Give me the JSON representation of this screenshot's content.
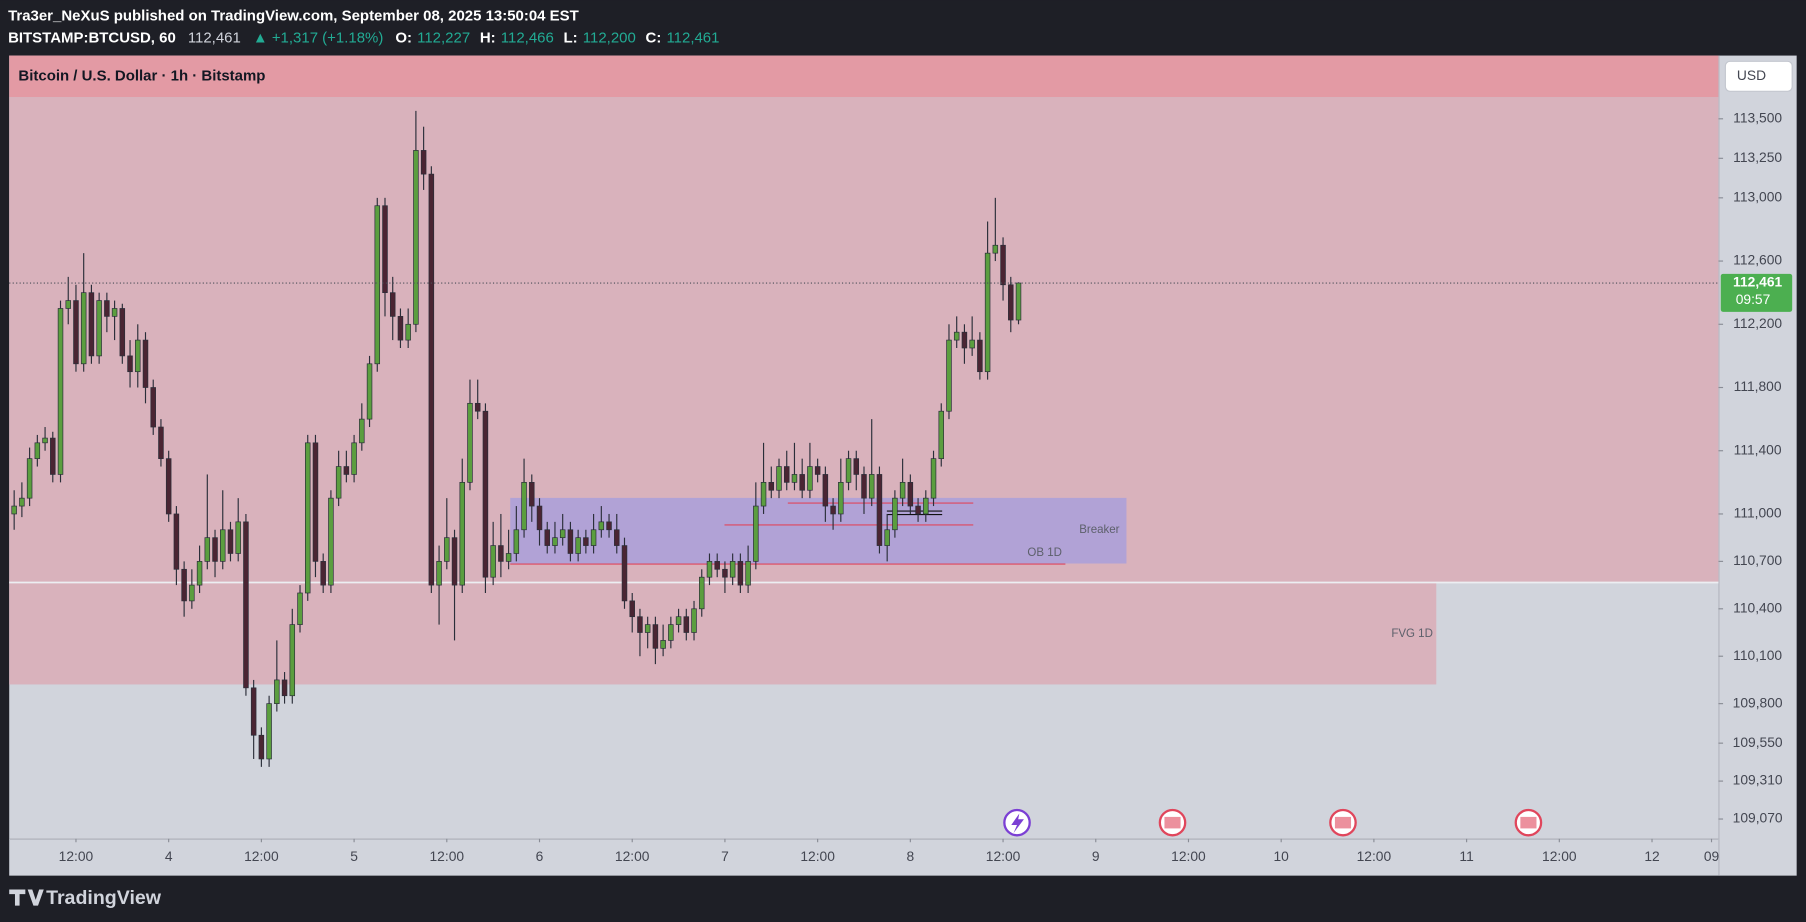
{
  "header": {
    "publisher": "Tra3er_NeXuS published on TradingView.com, September 08, 2025 13:50:04 EST",
    "symbol": "BITSTAMP:BTCUSD, 60",
    "last": "112,461",
    "change": "▲ +1,317 (+1.18%)",
    "open_label": "O:",
    "open": "112,227",
    "high_label": "H:",
    "high": "112,466",
    "low_label": "L:",
    "low": "112,200",
    "close_label": "C:",
    "close": "112,461"
  },
  "chart_data": {
    "type": "candlestick",
    "title": "Bitcoin / U.S. Dollar · 1h · Bitstamp",
    "currency": "USD",
    "last_price_label": "112,461",
    "countdown": "09:57",
    "annotations": [
      "Breaker",
      "OB 1D",
      "FVG 1D"
    ],
    "up_color": "#5b9e3f",
    "down_color": "#4a2533",
    "x": [
      1,
      2,
      3,
      4,
      5,
      6,
      7,
      8,
      9,
      10,
      11,
      12,
      13,
      14,
      15,
      16,
      17,
      18,
      19,
      20,
      21,
      22,
      23,
      24,
      25,
      26,
      27,
      28,
      29,
      30,
      31,
      32,
      33,
      34,
      35,
      36,
      37,
      38,
      39,
      40,
      41,
      42,
      43,
      44,
      45,
      46,
      47,
      48,
      49,
      50,
      51,
      52,
      53,
      54,
      55,
      56,
      57,
      58,
      59,
      60,
      61,
      62,
      63,
      64,
      65,
      66,
      67,
      68,
      69,
      70,
      71,
      72,
      73,
      74,
      75,
      76,
      77,
      78,
      79,
      80,
      81,
      82,
      83,
      84,
      85,
      86,
      87,
      88,
      89,
      90,
      91,
      92,
      93,
      94,
      95,
      96,
      97,
      98,
      99,
      100,
      101,
      102,
      103,
      104,
      105,
      106,
      107,
      108,
      109,
      110,
      111,
      112,
      113,
      114,
      115,
      116,
      117,
      118,
      119,
      120,
      121,
      122,
      123,
      124,
      125,
      126,
      127,
      128,
      129,
      130,
      131
    ],
    "open": [
      111000,
      111050,
      111100,
      111350,
      111450,
      111480,
      111250,
      112300,
      112350,
      111950,
      112400,
      112000,
      112350,
      112250,
      112300,
      112000,
      111900,
      112100,
      111800,
      111550,
      111350,
      111000,
      110650,
      110450,
      110550,
      110700,
      110850,
      110700,
      110900,
      110750,
      110950,
      109900,
      109600,
      109450,
      109800,
      109950,
      109850,
      110300,
      110500,
      111450,
      110700,
      110550,
      111100,
      111300,
      111250,
      111450,
      111600,
      111950,
      112950,
      112400,
      112250,
      112100,
      112200,
      113300,
      113150,
      110550,
      110700,
      110850,
      110550,
      111200,
      111700,
      111650,
      110600,
      110800,
      110700,
      110750,
      110900,
      111200,
      111050,
      110900,
      110800,
      110850,
      110900,
      110750,
      110850,
      110800,
      110900,
      110950,
      110900,
      110800,
      110450,
      110350,
      110250,
      110300,
      110150,
      110200,
      110300,
      110350,
      110250,
      110400,
      110600,
      110700,
      110650,
      110600,
      110700,
      110550,
      110700,
      111050,
      111200,
      111150,
      111300,
      111200,
      111250,
      111150,
      111300,
      111250,
      111050,
      111000,
      111200,
      111350,
      111250,
      111100,
      111250,
      110800,
      110900,
      111100,
      111200,
      111050,
      111000,
      111100,
      111350,
      111650,
      112100,
      112150,
      112050,
      112100,
      111900,
      112650,
      112700,
      112450,
      112227
    ],
    "high": [
      111150,
      111200,
      111420,
      111500,
      111550,
      111520,
      112350,
      112500,
      112450,
      112650,
      112450,
      112400,
      112400,
      112350,
      112330,
      112100,
      112200,
      112150,
      111850,
      111600,
      111400,
      111050,
      110700,
      110650,
      110800,
      111250,
      110900,
      111150,
      110950,
      111100,
      111000,
      109950,
      109650,
      109850,
      110200,
      110000,
      110400,
      110550,
      111500,
      111500,
      110750,
      111150,
      111400,
      111400,
      111500,
      111700,
      112000,
      113000,
      113000,
      112500,
      112300,
      112300,
      113550,
      113450,
      113200,
      110800,
      111100,
      110900,
      111350,
      111850,
      111850,
      111700,
      110950,
      111000,
      110900,
      111050,
      111350,
      111250,
      111100,
      110950,
      110950,
      111000,
      110950,
      110900,
      110900,
      111000,
      111050,
      111000,
      111000,
      110850,
      110500,
      110400,
      110350,
      110350,
      110300,
      110350,
      110400,
      110400,
      110450,
      110650,
      110750,
      110750,
      110700,
      110750,
      110750,
      110800,
      111200,
      111450,
      111300,
      111350,
      111400,
      111450,
      111350,
      111450,
      111350,
      111300,
      111100,
      111350,
      111400,
      111400,
      111300,
      111600,
      111300,
      111000,
      111150,
      111350,
      111250,
      111100,
      111150,
      111400,
      111700,
      112200,
      112250,
      112200,
      112250,
      112150,
      112850,
      113000,
      112750,
      112500,
      112466
    ],
    "low": [
      110900,
      110980,
      111050,
      111300,
      111400,
      111200,
      111200,
      112200,
      111900,
      111900,
      111950,
      111950,
      112150,
      112100,
      111950,
      111800,
      111800,
      111700,
      111500,
      111300,
      110950,
      110550,
      110350,
      110400,
      110500,
      110650,
      110600,
      110650,
      110700,
      110700,
      109850,
      109450,
      109400,
      109400,
      109750,
      109800,
      109800,
      110250,
      110450,
      110600,
      110500,
      110500,
      111050,
      111200,
      111200,
      111400,
      111550,
      111900,
      112250,
      112100,
      112050,
      112050,
      112150,
      113050,
      110500,
      110300,
      110650,
      110200,
      110500,
      111150,
      111600,
      110500,
      110550,
      110600,
      110650,
      110700,
      110850,
      110950,
      110800,
      110750,
      110750,
      110800,
      110700,
      110700,
      110750,
      110750,
      110850,
      110850,
      110750,
      110400,
      110250,
      110100,
      110150,
      110050,
      110100,
      110150,
      110250,
      110200,
      110200,
      110350,
      110550,
      110600,
      110500,
      110550,
      110500,
      110500,
      110650,
      111000,
      111100,
      111100,
      111150,
      111150,
      111100,
      111100,
      111200,
      110950,
      110900,
      110950,
      111150,
      111150,
      111000,
      111050,
      110750,
      110700,
      110850,
      111050,
      111000,
      110950,
      110950,
      111050,
      111300,
      111600,
      112050,
      111950,
      112000,
      111850,
      111850,
      112600,
      112350,
      112150,
      112200
    ],
    "close": [
      111050,
      111100,
      111350,
      111450,
      111480,
      111250,
      112300,
      112350,
      111950,
      112400,
      112000,
      112350,
      112250,
      112300,
      112000,
      111900,
      112100,
      111800,
      111550,
      111350,
      111000,
      110650,
      110450,
      110550,
      110700,
      110850,
      110700,
      110900,
      110750,
      110950,
      109900,
      109600,
      109450,
      109800,
      109950,
      109850,
      110300,
      110500,
      111450,
      110700,
      110550,
      111100,
      111300,
      111250,
      111450,
      111600,
      111950,
      112950,
      112400,
      112250,
      112100,
      112200,
      113300,
      113150,
      110550,
      110700,
      110850,
      110550,
      111200,
      111700,
      111650,
      110600,
      110800,
      110700,
      110750,
      110900,
      111200,
      111050,
      110900,
      110800,
      110850,
      110900,
      110750,
      110850,
      110800,
      110900,
      110950,
      110900,
      110800,
      110450,
      110350,
      110250,
      110300,
      110150,
      110200,
      110300,
      110350,
      110250,
      110400,
      110600,
      110700,
      110650,
      110600,
      110700,
      110550,
      110700,
      111050,
      111200,
      111150,
      111300,
      111200,
      111250,
      111150,
      111300,
      111250,
      111050,
      111000,
      111200,
      111350,
      111250,
      111100,
      111250,
      110800,
      110900,
      111100,
      111200,
      111050,
      111000,
      111100,
      111350,
      111650,
      112100,
      112150,
      112050,
      112100,
      111900,
      112650,
      112700,
      112450,
      112227,
      112461
    ],
    "xlim": [
      0.36,
      221.6
    ],
    "xticks": [
      {
        "value": 9,
        "label": "12:00"
      },
      {
        "value": 21,
        "label": "4"
      },
      {
        "value": 33,
        "label": "12:00"
      },
      {
        "value": 45,
        "label": "5"
      },
      {
        "value": 57,
        "label": "12:00"
      },
      {
        "value": 69,
        "label": "6"
      },
      {
        "value": 81,
        "label": "12:00"
      },
      {
        "value": 93,
        "label": "7"
      },
      {
        "value": 105,
        "label": "12:00"
      },
      {
        "value": 117,
        "label": "8"
      },
      {
        "value": 129,
        "label": "12:00"
      },
      {
        "value": 141,
        "label": "9"
      },
      {
        "value": 153,
        "label": "12:00"
      },
      {
        "value": 165,
        "label": "10"
      },
      {
        "value": 177,
        "label": "12:00"
      },
      {
        "value": 189,
        "label": "11"
      },
      {
        "value": 201,
        "label": "12:00"
      },
      {
        "value": 213,
        "label": "12"
      },
      {
        "value": 220.7,
        "label": "09"
      }
    ],
    "ylim": [
      108945,
      113900
    ],
    "yticks": [
      {
        "value": 113500,
        "label": "113,500"
      },
      {
        "value": 113250,
        "label": "113,250"
      },
      {
        "value": 113000,
        "label": "113,000"
      },
      {
        "value": 112600,
        "label": "112,600"
      },
      {
        "value": 112200,
        "label": "112,200"
      },
      {
        "value": 111800,
        "label": "111,800"
      },
      {
        "value": 111400,
        "label": "111,400"
      },
      {
        "value": 111000,
        "label": "111,000"
      },
      {
        "value": 110700,
        "label": "110,700"
      },
      {
        "value": 110400,
        "label": "110,400"
      },
      {
        "value": 110100,
        "label": "110,100"
      },
      {
        "value": 109800,
        "label": "109,800"
      },
      {
        "value": 109550,
        "label": "109,550"
      },
      {
        "value": 109310,
        "label": "109,310"
      },
      {
        "value": 109070,
        "label": "109,070"
      }
    ]
  },
  "footer": {
    "brand": "TradingView"
  }
}
